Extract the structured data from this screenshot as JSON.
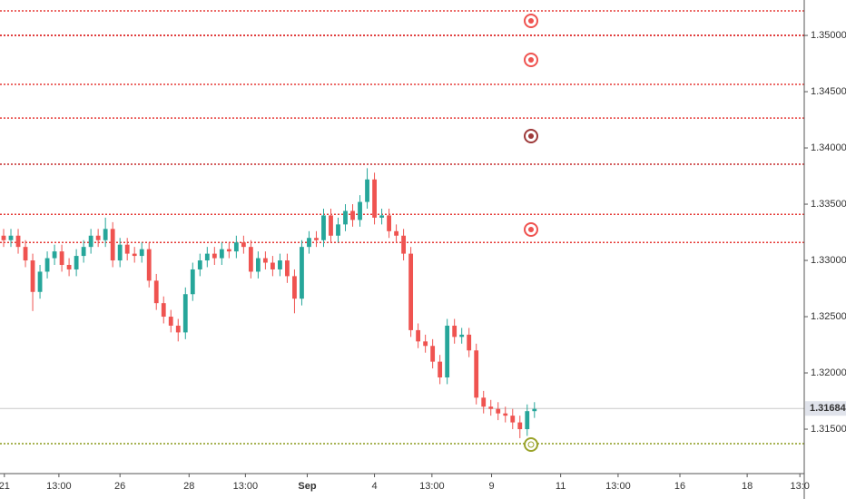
{
  "chart_data": {
    "type": "candlestick",
    "xlim": [
      0,
      110.6
    ],
    "xticks": [
      {
        "value": 0.6,
        "label": "21"
      },
      {
        "value": 8.1,
        "label": "13:00"
      },
      {
        "value": 16.5,
        "label": "26"
      },
      {
        "value": 26,
        "label": "28"
      },
      {
        "value": 33.75,
        "label": "13:00"
      },
      {
        "value": 42.25,
        "label": "Sep"
      },
      {
        "value": 51.5,
        "label": "4"
      },
      {
        "value": 59.4,
        "label": "13:00"
      },
      {
        "value": 67.6,
        "label": "9"
      },
      {
        "value": 77.1,
        "label": "11"
      },
      {
        "value": 85,
        "label": "13:00"
      },
      {
        "value": 93.5,
        "label": "16"
      },
      {
        "value": 102.75,
        "label": "18"
      },
      {
        "value": 110,
        "label": "13:0"
      }
    ],
    "ylim": [
      1.31105,
      1.35315
    ],
    "yticks": [
      {
        "value": 1.315,
        "label": "1.31500"
      },
      {
        "value": 1.32,
        "label": "1.32000"
      },
      {
        "value": 1.325,
        "label": "1.32500"
      },
      {
        "value": 1.33,
        "label": "1.33000"
      },
      {
        "value": 1.335,
        "label": "1.33500"
      },
      {
        "value": 1.34,
        "label": "1.34000"
      },
      {
        "value": 1.345,
        "label": "1.34500"
      },
      {
        "value": 1.35,
        "label": "1.35000"
      }
    ],
    "up_color": "#26a69a",
    "down_color": "#ef5350",
    "open": [
      1.3322,
      1.3318,
      1.3322,
      1.3312,
      1.33,
      1.3272,
      1.329,
      1.3302,
      1.3308,
      1.3296,
      1.3292,
      1.3304,
      1.3312,
      1.3322,
      1.3318,
      1.3328,
      1.33,
      1.3314,
      1.3306,
      1.3304,
      1.331,
      1.3282,
      1.3262,
      1.325,
      1.3242,
      1.3236,
      1.327,
      1.3292,
      1.33,
      1.3306,
      1.3302,
      1.331,
      1.3308,
      1.3316,
      1.3312,
      1.329,
      1.3302,
      1.3298,
      1.3292,
      1.33,
      1.3286,
      1.3266,
      1.3312,
      1.332,
      1.3318,
      1.334,
      1.3322,
      1.3332,
      1.3344,
      1.3336,
      1.3352,
      1.3372,
      1.3338,
      1.334,
      1.3326,
      1.3322,
      1.3306,
      1.3238,
      1.3228,
      1.3224,
      1.321,
      1.3196,
      1.3242,
      1.3232,
      1.3234,
      1.322,
      1.3178,
      1.317,
      1.3168,
      1.3164,
      1.3162,
      1.3156,
      1.315,
      1.3166
    ],
    "high": [
      1.3328,
      1.3328,
      1.3328,
      1.3318,
      1.3306,
      1.3296,
      1.3308,
      1.3314,
      1.3314,
      1.3302,
      1.331,
      1.3318,
      1.3328,
      1.3328,
      1.3338,
      1.3334,
      1.332,
      1.332,
      1.3312,
      1.3316,
      1.3316,
      1.3288,
      1.3268,
      1.3256,
      1.3248,
      1.3276,
      1.3298,
      1.3306,
      1.3312,
      1.3312,
      1.3316,
      1.3316,
      1.3322,
      1.3322,
      1.3318,
      1.3308,
      1.3308,
      1.3304,
      1.3306,
      1.3306,
      1.3292,
      1.3318,
      1.3326,
      1.3326,
      1.3346,
      1.3346,
      1.3338,
      1.335,
      1.335,
      1.3358,
      1.3382,
      1.3378,
      1.3346,
      1.3346,
      1.3332,
      1.3328,
      1.3312,
      1.3244,
      1.3234,
      1.323,
      1.3216,
      1.3248,
      1.3248,
      1.324,
      1.324,
      1.3226,
      1.3184,
      1.3176,
      1.3174,
      1.317,
      1.3168,
      1.3162,
      1.3172,
      1.3174
    ],
    "low": [
      1.3312,
      1.3312,
      1.3306,
      1.3294,
      1.3255,
      1.3266,
      1.3284,
      1.3296,
      1.329,
      1.3286,
      1.3286,
      1.3298,
      1.3306,
      1.3312,
      1.3312,
      1.3294,
      1.3294,
      1.33,
      1.3298,
      1.3298,
      1.3276,
      1.3256,
      1.3244,
      1.3236,
      1.3228,
      1.323,
      1.3264,
      1.3286,
      1.3294,
      1.3296,
      1.3296,
      1.3302,
      1.3302,
      1.3306,
      1.3284,
      1.3284,
      1.3292,
      1.3286,
      1.3286,
      1.328,
      1.3253,
      1.326,
      1.3306,
      1.3312,
      1.3312,
      1.3316,
      1.3316,
      1.3326,
      1.333,
      1.333,
      1.3346,
      1.3332,
      1.3332,
      1.332,
      1.3316,
      1.33,
      1.3232,
      1.3222,
      1.3218,
      1.3204,
      1.319,
      1.319,
      1.3226,
      1.3226,
      1.3214,
      1.3172,
      1.3164,
      1.3162,
      1.3158,
      1.3156,
      1.315,
      1.3142,
      1.3144,
      1.316
    ],
    "close": [
      1.3318,
      1.3322,
      1.3312,
      1.33,
      1.3272,
      1.329,
      1.3302,
      1.3308,
      1.3296,
      1.3292,
      1.3304,
      1.3312,
      1.3322,
      1.3318,
      1.3328,
      1.33,
      1.3314,
      1.3306,
      1.3304,
      1.331,
      1.3282,
      1.3262,
      1.325,
      1.3242,
      1.3236,
      1.327,
      1.3292,
      1.33,
      1.3306,
      1.3302,
      1.331,
      1.3308,
      1.3316,
      1.3312,
      1.329,
      1.3302,
      1.3298,
      1.3292,
      1.33,
      1.3286,
      1.3266,
      1.3312,
      1.332,
      1.3318,
      1.334,
      1.3322,
      1.3332,
      1.3344,
      1.3336,
      1.3352,
      1.3372,
      1.3338,
      1.334,
      1.3326,
      1.3322,
      1.3306,
      1.3238,
      1.3228,
      1.3224,
      1.321,
      1.3196,
      1.3242,
      1.3232,
      1.3234,
      1.322,
      1.3178,
      1.317,
      1.3168,
      1.3164,
      1.3162,
      1.3156,
      1.315,
      1.3166,
      1.3168
    ],
    "levels": [
      {
        "value": 1.35218,
        "color": "#e53935"
      },
      {
        "value": 1.35,
        "color": "#d50000"
      },
      {
        "value": 1.34565,
        "color": "#e53935"
      },
      {
        "value": 1.34266,
        "color": "#e53935"
      },
      {
        "value": 1.33855,
        "color": "#c62828"
      },
      {
        "value": 1.3341,
        "color": "#e53935"
      },
      {
        "value": 1.3316,
        "color": "#e53935"
      },
      {
        "value": 1.31371,
        "color": "#8c9a1b"
      }
    ],
    "last_price": {
      "value": 1.31684,
      "label": "1.31684"
    }
  }
}
